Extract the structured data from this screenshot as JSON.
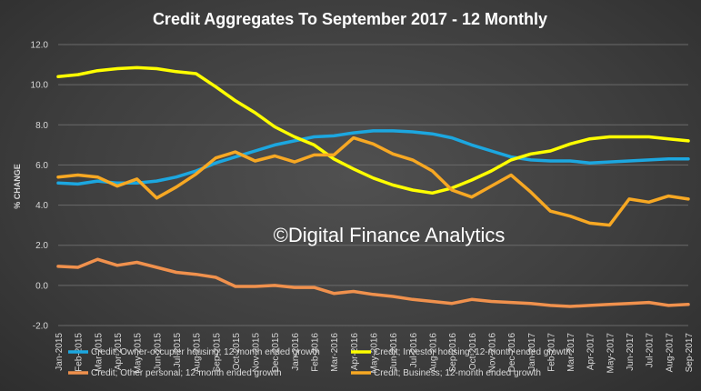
{
  "chart_data": {
    "type": "line",
    "title": "Credit Aggregates To September 2017 - 12 Monthly",
    "ylabel": "% CHANGE",
    "xlabel": "",
    "ylim": [
      -2,
      12
    ],
    "yticks": [
      "-2.0",
      "0.0",
      "2.0",
      "4.0",
      "6.0",
      "8.0",
      "10.0",
      "12.0"
    ],
    "grid": true,
    "legend_position": "bottom",
    "watermark": "©Digital Finance Analytics",
    "categories": [
      "Jan-2015",
      "Feb-2015",
      "Mar-2015",
      "Apr-2015",
      "May-2015",
      "Jun-2015",
      "Jul-2015",
      "Aug-2015",
      "Sep-2015",
      "Oct-2015",
      "Nov-2015",
      "Dec-2015",
      "Jan-2016",
      "Feb-2016",
      "Mar-2016",
      "Apr-2016",
      "May-2016",
      "Jun-2016",
      "Jul-2016",
      "Aug-2016",
      "Sep-2016",
      "Oct-2016",
      "Nov-2016",
      "Dec-2016",
      "Jan-2017",
      "Feb-2017",
      "Mar-2017",
      "Apr-2017",
      "May-2017",
      "Jun-2017",
      "Jul-2017",
      "Aug-2017",
      "Sep-2017"
    ],
    "series": [
      {
        "name": "Credit; Owner-occupier housing; 12-month ended growth",
        "color": "#1ca7e0",
        "values": [
          5.1,
          5.05,
          5.2,
          5.1,
          5.1,
          5.2,
          5.4,
          5.7,
          6.1,
          6.4,
          6.7,
          7.0,
          7.2,
          7.4,
          7.45,
          7.6,
          7.7,
          7.7,
          7.65,
          7.55,
          7.35,
          7.0,
          6.7,
          6.4,
          6.25,
          6.2,
          6.2,
          6.1,
          6.15,
          6.2,
          6.25,
          6.3,
          6.3
        ]
      },
      {
        "name": "Credit; Investor housing; 12-month ended growth",
        "color": "#ffff00",
        "values": [
          10.4,
          10.5,
          10.7,
          10.8,
          10.85,
          10.8,
          10.65,
          10.55,
          9.9,
          9.2,
          8.6,
          7.9,
          7.4,
          7.0,
          6.3,
          5.8,
          5.35,
          5.0,
          4.75,
          4.6,
          4.85,
          5.25,
          5.7,
          6.25,
          6.55,
          6.7,
          7.05,
          7.3,
          7.4,
          7.4,
          7.4,
          7.3,
          7.2
        ]
      },
      {
        "name": "Credit; Other personal; 12-month ended growth",
        "color": "#f0914d",
        "values": [
          0.95,
          0.9,
          1.3,
          1.0,
          1.15,
          0.9,
          0.65,
          0.55,
          0.4,
          -0.05,
          -0.05,
          0.0,
          -0.1,
          -0.1,
          -0.4,
          -0.3,
          -0.45,
          -0.55,
          -0.7,
          -0.8,
          -0.9,
          -0.7,
          -0.8,
          -0.85,
          -0.9,
          -1.0,
          -1.05,
          -1.0,
          -0.95,
          -0.9,
          -0.85,
          -1.0,
          -0.95
        ]
      },
      {
        "name": "Credit; Business; 12-month ended growth",
        "color": "#f7a823",
        "values": [
          5.4,
          5.5,
          5.4,
          4.95,
          5.3,
          4.35,
          4.9,
          5.55,
          6.35,
          6.65,
          6.2,
          6.45,
          6.15,
          6.5,
          6.5,
          7.35,
          7.05,
          6.55,
          6.25,
          5.7,
          4.75,
          4.4,
          4.95,
          5.5,
          4.65,
          3.7,
          3.45,
          3.1,
          3.0,
          4.3,
          4.15,
          4.45,
          4.3
        ]
      }
    ]
  }
}
